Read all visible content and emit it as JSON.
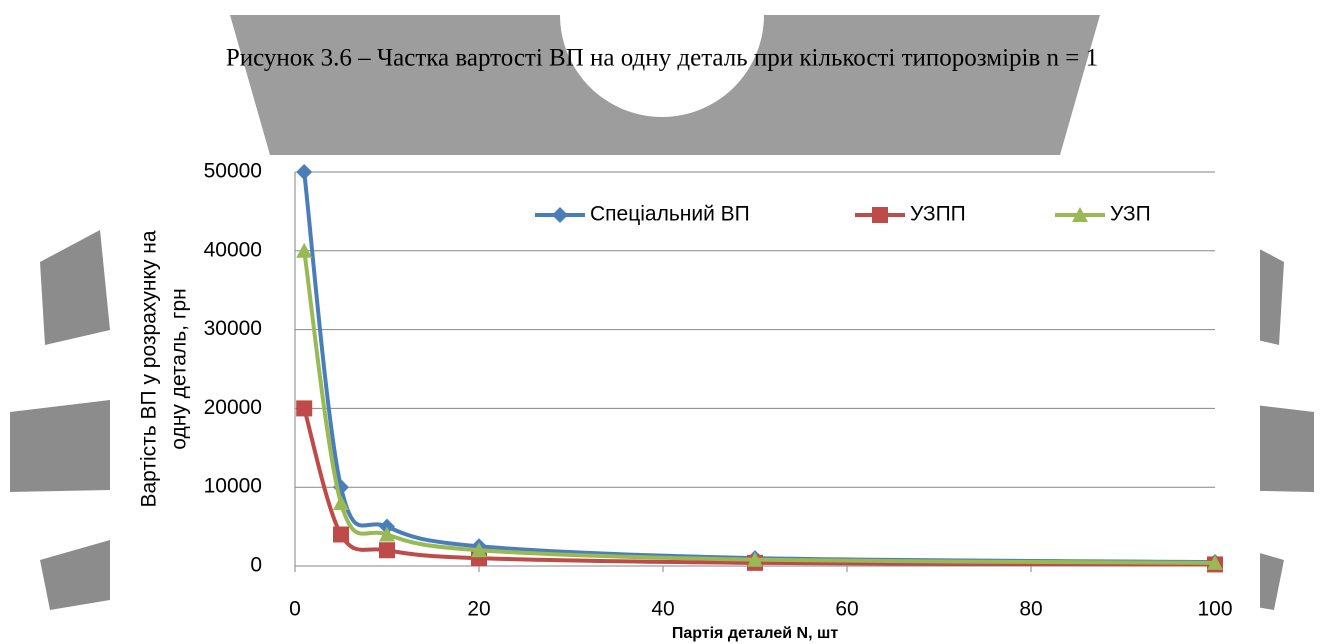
{
  "chart_data": {
    "type": "line",
    "title": "Рисунок 3.6 – Частка вартості ВП на одну деталь при кількості типорозмірів n = 1",
    "x_label": "Партія деталей N, шт",
    "y_label": [
      "Вартість ВП у розрахунку на",
      "одну деталь, грн"
    ],
    "x": [
      1,
      5,
      10,
      20,
      50,
      100
    ],
    "series": [
      {
        "name": "Спеціальний ВП",
        "color": "#4a7ebb",
        "marker": "diamond",
        "values": [
          50000,
          10000,
          5000,
          2500,
          1000,
          500
        ]
      },
      {
        "name": "УЗПП",
        "color": "#be4b48",
        "marker": "square",
        "values": [
          20000,
          4000,
          2000,
          1000,
          400,
          200
        ]
      },
      {
        "name": "УЗП",
        "color": "#98b954",
        "marker": "triangle",
        "values": [
          40000,
          8000,
          4000,
          2000,
          800,
          400
        ]
      }
    ],
    "xlim": [
      0,
      100
    ],
    "xticks": [
      0,
      20,
      40,
      60,
      80,
      100
    ],
    "ylim": [
      0,
      50000
    ],
    "yticks": [
      0,
      10000,
      20000,
      30000,
      40000,
      50000
    ],
    "grid": true,
    "smooth": true,
    "legend": "top"
  }
}
